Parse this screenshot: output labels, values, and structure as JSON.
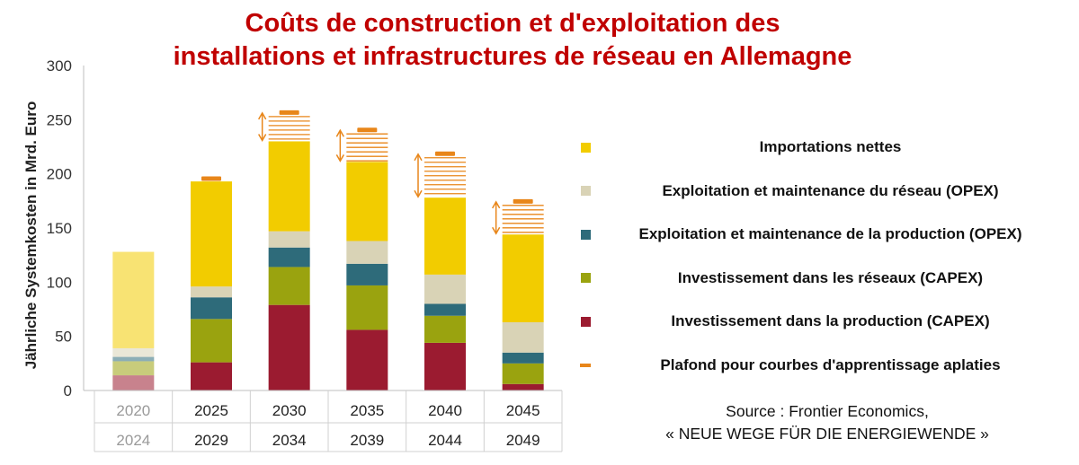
{
  "title_line1": "Coûts de construction et d'exploitation des",
  "title_line2": "installations et infrastructures de réseau en Allemagne",
  "chart_data": {
    "type": "bar",
    "stacked": true,
    "title": "Coûts de construction et d'exploitation des installations et infrastructures de réseau en Allemagne",
    "ylabel": "Jährliche Systemkosten in Mrd. Euro",
    "ylim": [
      0,
      300
    ],
    "yticks": [
      "0",
      "50",
      "100",
      "150",
      "200",
      "250",
      "300"
    ],
    "categories": [
      {
        "top": "2020",
        "bottom": "2024"
      },
      {
        "top": "2025",
        "bottom": "2029"
      },
      {
        "top": "2030",
        "bottom": "2034"
      },
      {
        "top": "2035",
        "bottom": "2039"
      },
      {
        "top": "2040",
        "bottom": "2044"
      },
      {
        "top": "2045",
        "bottom": "2049"
      }
    ],
    "faded_first_category": true,
    "series": [
      {
        "name": "Investissement dans la production (CAPEX)",
        "color": "#9b1b30",
        "values": [
          14,
          26,
          79,
          56,
          44,
          6
        ]
      },
      {
        "name": "Investissement dans les réseaux (CAPEX)",
        "color": "#9aa30f",
        "values": [
          13,
          40,
          35,
          41,
          25,
          19
        ]
      },
      {
        "name": "Exploitation et maintenance de la production (OPEX)",
        "color": "#2e6b7a",
        "values": [
          4,
          20,
          18,
          20,
          11,
          10
        ]
      },
      {
        "name": "Exploitation et maintenance du réseau (OPEX)",
        "color": "#d9d3b6",
        "values": [
          8,
          10,
          15,
          21,
          27,
          28
        ]
      },
      {
        "name": "Importations nettes",
        "color": "#f2cc00",
        "values": [
          89,
          97,
          83,
          73,
          71,
          81
        ]
      }
    ],
    "ceiling": {
      "name": "Plafond pour courbes d'apprentissage aplaties",
      "color": "#e8861a",
      "values": [
        null,
        196,
        257,
        241,
        219,
        175
      ]
    },
    "legend_order": [
      "Importations nettes",
      "Exploitation et maintenance du réseau (OPEX)",
      "Exploitation et maintenance de la production (OPEX)",
      "Investissement dans les réseaux (CAPEX)",
      "Investissement dans la production (CAPEX)",
      "Plafond pour courbes d'apprentissage aplaties"
    ],
    "legend_position": "right"
  },
  "legend": [
    {
      "label": "Importations nettes",
      "color": "#f2cc00",
      "shape": "square"
    },
    {
      "label": "Exploitation et maintenance du réseau (OPEX)",
      "color": "#d9d3b6",
      "shape": "square"
    },
    {
      "label": "Exploitation et maintenance de la production (OPEX)",
      "color": "#2e6b7a",
      "shape": "square"
    },
    {
      "label": "Investissement dans les réseaux (CAPEX)",
      "color": "#9aa30f",
      "shape": "square"
    },
    {
      "label": "Investissement dans la production (CAPEX)",
      "color": "#9b1b30",
      "shape": "square"
    },
    {
      "label": "Plafond pour courbes d'apprentissage aplaties",
      "color": "#e8861a",
      "shape": "dash"
    }
  ],
  "source_line1": "Source : Frontier Economics,",
  "source_line2": "« NEUE WEGE FÜR DIE ENERGIEWENDE »"
}
